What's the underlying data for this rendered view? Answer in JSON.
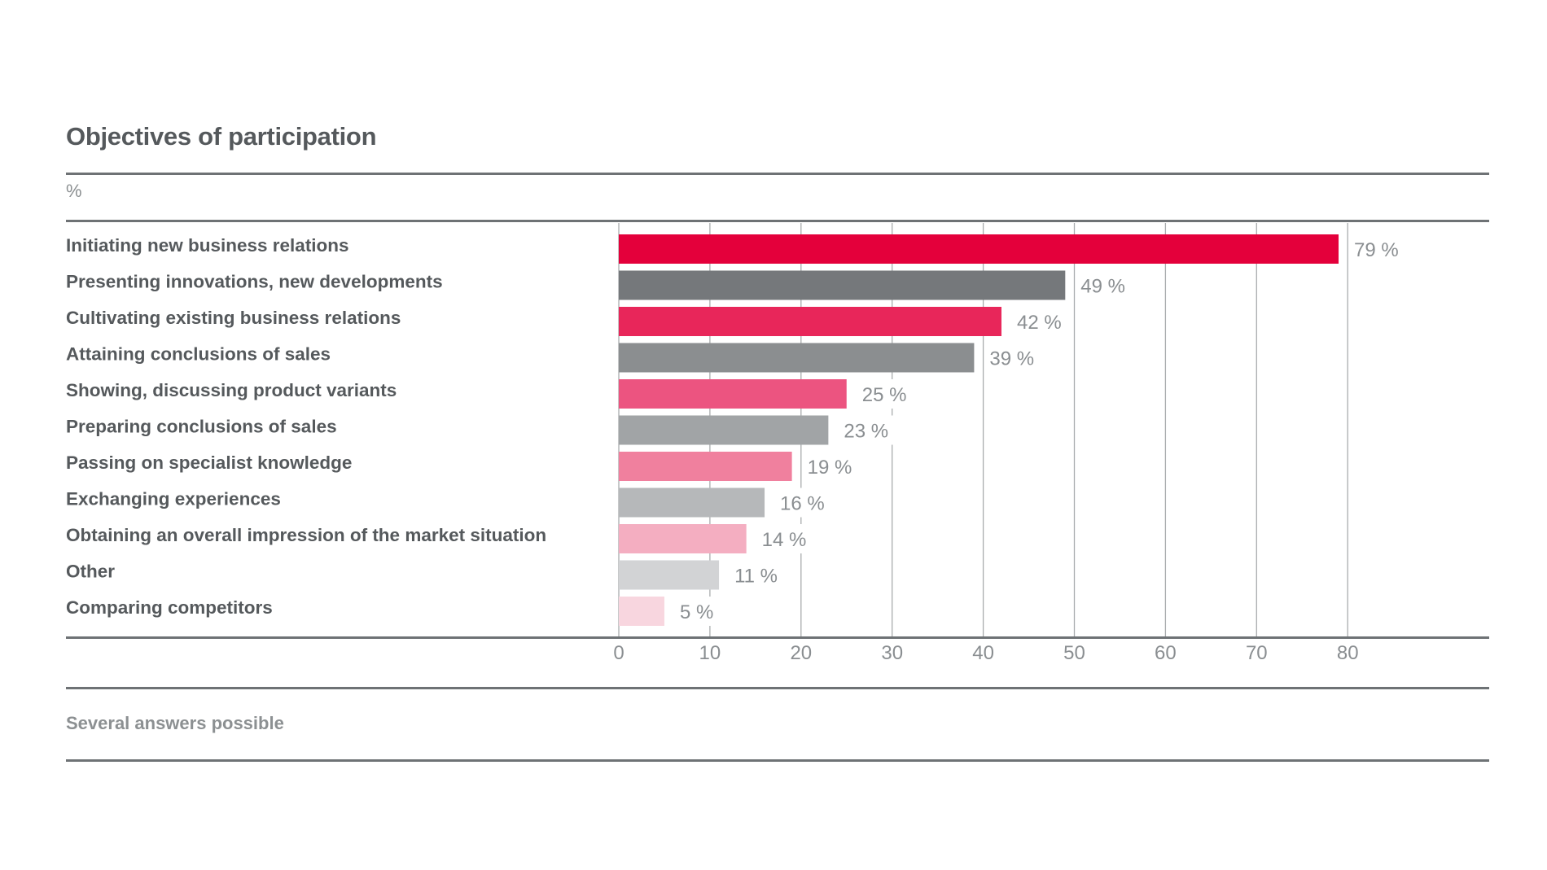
{
  "header": {
    "title": "Objectives of participation",
    "unit": "%"
  },
  "footer": {
    "note": "Several answers possible"
  },
  "chart_data": {
    "type": "bar",
    "orientation": "horizontal",
    "title": "Objectives of participation",
    "ylabel": "%",
    "xlim": [
      0,
      80
    ],
    "ticks": [
      0,
      10,
      20,
      30,
      40,
      50,
      60,
      70,
      80
    ],
    "grid": true,
    "value_suffix": " %",
    "categories": [
      "Initiating new business relations",
      "Presenting innovations, new developments",
      "Cultivating existing business relations",
      "Attaining conclusions of sales",
      "Showing, discussing product variants",
      "Preparing conclusions of sales",
      "Passing on specialist knowledge",
      "Exchanging experiences",
      "Obtaining an overall impression of the market situation",
      "Other",
      "Comparing competitors"
    ],
    "values": [
      79,
      49,
      42,
      39,
      25,
      23,
      19,
      16,
      14,
      11,
      5
    ],
    "colors": [
      "#e4003b",
      "#75787b",
      "#e8265a",
      "#8b8e90",
      "#ec5480",
      "#a1a4a6",
      "#f0809e",
      "#b6b8ba",
      "#f4aec1",
      "#d2d3d5",
      "#f8d6df"
    ]
  }
}
